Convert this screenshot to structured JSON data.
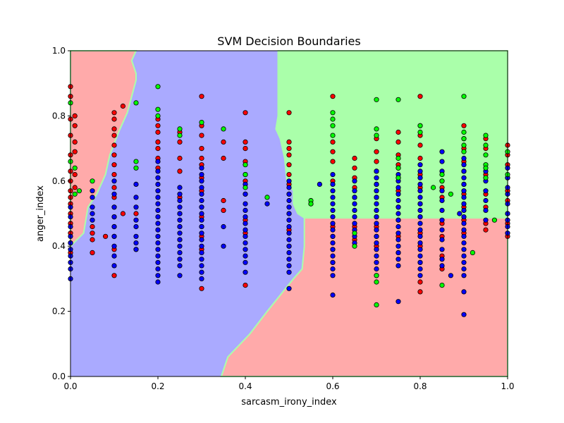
{
  "chart_data": {
    "type": "scatter",
    "title": "SVM Decision Boundaries",
    "xlabel": "sarcasm_irony_index",
    "ylabel": "anger_index",
    "xlim": [
      0,
      1
    ],
    "ylim": [
      0,
      1
    ],
    "x_ticks": [
      "0.0",
      "0.2",
      "0.4",
      "0.6",
      "0.8",
      "1.0"
    ],
    "y_ticks": [
      "0.0",
      "0.2",
      "0.4",
      "0.6",
      "0.8",
      "1.0"
    ],
    "x_tick_values": [
      0,
      0.2,
      0.4,
      0.6,
      0.8,
      1.0
    ],
    "y_tick_values": [
      0,
      0.2,
      0.4,
      0.6,
      0.8,
      1.0
    ],
    "grid": false,
    "legend": "none",
    "region_colors": {
      "red": "#ffaaaa",
      "blue": "#aaaaff",
      "green": "#aaffaa"
    },
    "point_colors": {
      "red": "#ff0000",
      "blue": "#0000ff",
      "green": "#00ff00"
    },
    "regions": [
      {
        "class": "red",
        "polygon": [
          [
            0,
            0.4
          ],
          [
            0.03,
            0.44
          ],
          [
            0.04,
            0.52
          ],
          [
            0.06,
            0.56
          ],
          [
            0.08,
            0.62
          ],
          [
            0.09,
            0.68
          ],
          [
            0.11,
            0.75
          ],
          [
            0.13,
            0.81
          ],
          [
            0.14,
            0.86
          ],
          [
            0.15,
            0.91
          ],
          [
            0.15,
            0.93
          ],
          [
            0.14,
            0.97
          ],
          [
            0.15,
            1.0
          ],
          [
            0,
            1.0
          ]
        ]
      },
      {
        "class": "green",
        "polygon": [
          [
            0.475,
            1.0
          ],
          [
            1.0,
            1.0
          ],
          [
            1.0,
            0.487
          ],
          [
            0.535,
            0.487
          ],
          [
            0.52,
            0.5
          ],
          [
            0.51,
            0.53
          ],
          [
            0.51,
            0.57
          ],
          [
            0.495,
            0.6
          ],
          [
            0.49,
            0.67
          ],
          [
            0.48,
            0.73
          ],
          [
            0.47,
            0.76
          ],
          [
            0.475,
            0.8
          ],
          [
            0.475,
            0.85
          ]
        ]
      },
      {
        "class": "red",
        "polygon": [
          [
            0.535,
            0.487
          ],
          [
            1.0,
            0.487
          ],
          [
            1.0,
            0.0
          ],
          [
            0.345,
            0.0
          ],
          [
            0.36,
            0.06
          ],
          [
            0.41,
            0.13
          ],
          [
            0.45,
            0.2
          ],
          [
            0.48,
            0.25
          ],
          [
            0.51,
            0.3
          ],
          [
            0.53,
            0.33
          ],
          [
            0.535,
            0.4
          ]
        ]
      }
    ],
    "series": [
      {
        "class": "red",
        "columns": [
          {
            "x": 0.0,
            "ys": [
              0.89,
              0.86,
              0.79,
              0.74,
              0.68,
              0.63,
              0.6,
              0.57,
              0.55,
              0.53,
              0.5,
              0.47,
              0.44,
              0.41,
              0.38
            ]
          },
          {
            "x": 0.01,
            "ys": [
              0.8,
              0.77,
              0.72,
              0.69,
              0.62,
              0.58
            ]
          },
          {
            "x": 0.05,
            "ys": [
              0.46,
              0.44,
              0.42,
              0.38
            ]
          },
          {
            "x": 0.08,
            "ys": [
              0.43
            ]
          },
          {
            "x": 0.1,
            "ys": [
              0.81,
              0.79,
              0.76,
              0.74,
              0.71,
              0.68,
              0.65,
              0.62,
              0.58,
              0.55,
              0.52,
              0.49,
              0.46,
              0.43,
              0.39,
              0.31
            ]
          },
          {
            "x": 0.12,
            "ys": [
              0.83,
              0.5
            ]
          },
          {
            "x": 0.15,
            "ys": [
              0.5,
              0.39
            ]
          },
          {
            "x": 0.2,
            "ys": [
              0.79,
              0.77,
              0.75,
              0.72,
              0.7,
              0.67,
              0.64
            ]
          },
          {
            "x": 0.25,
            "ys": [
              0.75,
              0.72,
              0.67,
              0.63,
              0.55,
              0.5,
              0.46,
              0.42
            ]
          },
          {
            "x": 0.3,
            "ys": [
              0.86,
              0.77,
              0.74,
              0.7,
              0.67,
              0.65,
              0.61,
              0.57,
              0.52,
              0.49,
              0.46,
              0.43,
              0.39,
              0.27
            ]
          },
          {
            "x": 0.35,
            "ys": [
              0.72,
              0.67,
              0.54,
              0.51
            ]
          },
          {
            "x": 0.4,
            "ys": [
              0.81,
              0.72,
              0.7,
              0.66,
              0.6,
              0.56,
              0.48,
              0.44,
              0.28
            ]
          },
          {
            "x": 0.5,
            "ys": [
              0.81,
              0.72,
              0.7,
              0.68,
              0.65,
              0.62,
              0.59,
              0.56,
              0.5,
              0.45,
              0.4
            ]
          },
          {
            "x": 0.55,
            "ys": [
              0.53
            ]
          },
          {
            "x": 0.6,
            "ys": [
              0.86,
              0.72,
              0.69,
              0.66,
              0.6,
              0.46,
              0.43,
              0.39,
              0.35
            ]
          },
          {
            "x": 0.65,
            "ys": [
              0.67,
              0.64,
              0.61,
              0.58,
              0.55,
              0.46,
              0.42
            ]
          },
          {
            "x": 0.7,
            "ys": [
              0.73,
              0.69,
              0.66,
              0.63,
              0.59,
              0.55,
              0.49,
              0.46,
              0.43,
              0.4
            ]
          },
          {
            "x": 0.75,
            "ys": [
              0.75,
              0.72,
              0.68,
              0.65,
              0.61,
              0.57,
              0.52,
              0.48,
              0.43,
              0.38
            ]
          },
          {
            "x": 0.8,
            "ys": [
              0.86,
              0.77,
              0.74,
              0.71,
              0.67,
              0.62,
              0.58,
              0.53,
              0.49,
              0.44,
              0.4,
              0.35,
              0.29,
              0.26
            ]
          },
          {
            "x": 0.85,
            "ys": [
              0.58,
              0.55,
              0.47,
              0.43,
              0.37,
              0.33
            ]
          },
          {
            "x": 0.9,
            "ys": [
              0.77,
              0.73,
              0.7,
              0.66,
              0.63,
              0.59,
              0.56,
              0.52,
              0.48,
              0.44
            ]
          },
          {
            "x": 0.95,
            "ys": [
              0.73,
              0.7,
              0.62,
              0.56,
              0.52,
              0.47,
              0.45
            ]
          },
          {
            "x": 1.0,
            "ys": [
              0.71,
              0.68,
              0.65,
              0.61,
              0.57,
              0.54,
              0.5,
              0.47,
              0.43
            ]
          }
        ]
      },
      {
        "class": "blue",
        "columns": [
          {
            "x": 0.0,
            "ys": [
              0.52,
              0.49,
              0.46,
              0.43,
              0.41,
              0.39,
              0.37,
              0.35,
              0.33,
              0.3
            ]
          },
          {
            "x": 0.05,
            "ys": [
              0.57,
              0.55,
              0.52,
              0.5,
              0.48
            ]
          },
          {
            "x": 0.1,
            "ys": [
              0.6,
              0.56,
              0.52,
              0.49,
              0.46,
              0.43,
              0.4,
              0.37,
              0.34
            ]
          },
          {
            "x": 0.15,
            "ys": [
              0.59,
              0.55,
              0.52,
              0.48,
              0.46,
              0.43,
              0.41,
              0.39
            ]
          },
          {
            "x": 0.2,
            "ys": [
              0.66,
              0.63,
              0.61,
              0.59,
              0.57,
              0.55,
              0.53,
              0.51,
              0.49,
              0.47,
              0.45,
              0.43,
              0.41,
              0.39,
              0.37,
              0.35,
              0.33,
              0.31,
              0.29
            ]
          },
          {
            "x": 0.25,
            "ys": [
              0.58,
              0.56,
              0.54,
              0.52,
              0.5,
              0.48,
              0.46,
              0.44,
              0.42,
              0.4,
              0.38,
              0.36,
              0.34,
              0.31
            ]
          },
          {
            "x": 0.3,
            "ys": [
              0.64,
              0.62,
              0.6,
              0.58,
              0.56,
              0.54,
              0.52,
              0.5,
              0.48,
              0.46,
              0.44,
              0.42,
              0.4,
              0.38,
              0.36,
              0.34,
              0.32,
              0.3
            ]
          },
          {
            "x": 0.35,
            "ys": [
              0.46,
              0.4
            ]
          },
          {
            "x": 0.4,
            "ys": [
              0.62,
              0.59,
              0.56,
              0.53,
              0.51,
              0.49,
              0.47,
              0.45,
              0.43,
              0.41,
              0.39,
              0.37,
              0.35,
              0.32
            ]
          },
          {
            "x": 0.45,
            "ys": [
              0.53
            ]
          },
          {
            "x": 0.5,
            "ys": [
              0.6,
              0.58,
              0.56,
              0.54,
              0.52,
              0.5,
              0.48,
              0.46,
              0.44,
              0.42,
              0.4,
              0.38,
              0.36,
              0.34,
              0.32,
              0.27
            ]
          },
          {
            "x": 0.57,
            "ys": [
              0.59
            ]
          },
          {
            "x": 0.6,
            "ys": [
              0.62,
              0.59,
              0.57,
              0.55,
              0.53,
              0.51,
              0.49,
              0.47,
              0.45,
              0.43,
              0.41,
              0.39,
              0.37,
              0.35,
              0.33,
              0.31,
              0.25
            ]
          },
          {
            "x": 0.65,
            "ys": [
              0.6,
              0.57,
              0.55,
              0.53,
              0.51,
              0.49,
              0.47,
              0.45,
              0.43,
              0.41
            ]
          },
          {
            "x": 0.7,
            "ys": [
              0.63,
              0.61,
              0.59,
              0.57,
              0.55,
              0.53,
              0.51,
              0.49,
              0.47,
              0.45,
              0.43,
              0.41,
              0.39,
              0.37,
              0.35,
              0.33,
              0.31
            ]
          },
          {
            "x": 0.75,
            "ys": [
              0.64,
              0.62,
              0.6,
              0.58,
              0.56,
              0.54,
              0.52,
              0.5,
              0.48,
              0.46,
              0.44,
              0.42,
              0.4,
              0.38,
              0.36,
              0.34,
              0.23
            ]
          },
          {
            "x": 0.8,
            "ys": [
              0.65,
              0.63,
              0.61,
              0.59,
              0.57,
              0.55,
              0.53,
              0.51,
              0.49,
              0.47,
              0.45,
              0.43,
              0.41,
              0.39,
              0.37,
              0.35,
              0.33,
              0.31
            ]
          },
          {
            "x": 0.85,
            "ys": [
              0.69,
              0.66,
              0.63,
              0.6,
              0.57,
              0.54,
              0.51,
              0.48,
              0.45,
              0.42,
              0.39,
              0.36,
              0.34
            ]
          },
          {
            "x": 0.87,
            "ys": [
              0.31
            ]
          },
          {
            "x": 0.89,
            "ys": [
              0.5
            ]
          },
          {
            "x": 0.9,
            "ys": [
              0.67,
              0.65,
              0.63,
              0.61,
              0.59,
              0.57,
              0.55,
              0.53,
              0.51,
              0.49,
              0.47,
              0.45,
              0.43,
              0.41,
              0.39,
              0.37,
              0.35,
              0.33,
              0.31,
              0.26,
              0.19
            ]
          },
          {
            "x": 0.95,
            "ys": [
              0.63,
              0.6,
              0.57,
              0.54,
              0.51,
              0.48
            ]
          },
          {
            "x": 1.0,
            "ys": [
              0.64,
              0.61,
              0.58,
              0.56,
              0.53,
              0.5,
              0.48,
              0.46,
              0.44
            ]
          }
        ]
      },
      {
        "class": "green",
        "columns": [
          {
            "x": 0.0,
            "ys": [
              0.84,
              0.66
            ]
          },
          {
            "x": 0.01,
            "ys": [
              0.64,
              0.56
            ]
          },
          {
            "x": 0.02,
            "ys": [
              0.57
            ]
          },
          {
            "x": 0.05,
            "ys": [
              0.6
            ]
          },
          {
            "x": 0.15,
            "ys": [
              0.84,
              0.66,
              0.64
            ]
          },
          {
            "x": 0.2,
            "ys": [
              0.89,
              0.82,
              0.8
            ]
          },
          {
            "x": 0.25,
            "ys": [
              0.76,
              0.74
            ]
          },
          {
            "x": 0.3,
            "ys": [
              0.78
            ]
          },
          {
            "x": 0.35,
            "ys": [
              0.76
            ]
          },
          {
            "x": 0.4,
            "ys": [
              0.65,
              0.62,
              0.58
            ]
          },
          {
            "x": 0.45,
            "ys": [
              0.55
            ]
          },
          {
            "x": 0.55,
            "ys": [
              0.54,
              0.53
            ]
          },
          {
            "x": 0.6,
            "ys": [
              0.81,
              0.79,
              0.77,
              0.74
            ]
          },
          {
            "x": 0.65,
            "ys": [
              0.44,
              0.4
            ]
          },
          {
            "x": 0.7,
            "ys": [
              0.85,
              0.76,
              0.74,
              0.31,
              0.29,
              0.22
            ]
          },
          {
            "x": 0.75,
            "ys": [
              0.85,
              0.67,
              0.64,
              0.61
            ]
          },
          {
            "x": 0.8,
            "ys": [
              0.77,
              0.75
            ]
          },
          {
            "x": 0.83,
            "ys": [
              0.58
            ]
          },
          {
            "x": 0.85,
            "ys": [
              0.62,
              0.6,
              0.28
            ]
          },
          {
            "x": 0.87,
            "ys": [
              0.56
            ]
          },
          {
            "x": 0.9,
            "ys": [
              0.86,
              0.75,
              0.73,
              0.71,
              0.69
            ]
          },
          {
            "x": 0.92,
            "ys": [
              0.38
            ]
          },
          {
            "x": 0.95,
            "ys": [
              0.74,
              0.71,
              0.68,
              0.65,
              0.64,
              0.61
            ]
          },
          {
            "x": 0.97,
            "ys": [
              0.48
            ]
          },
          {
            "x": 1.0,
            "ys": [
              0.69,
              0.62
            ]
          }
        ]
      }
    ]
  }
}
